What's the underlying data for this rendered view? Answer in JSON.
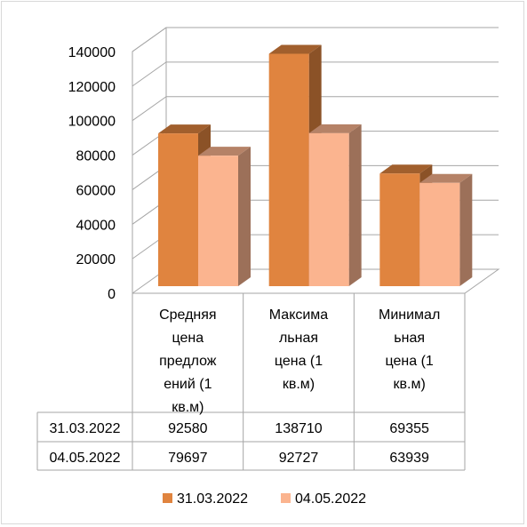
{
  "chart_data": {
    "type": "bar",
    "categories": [
      "Средняя цена предложений (1 кв.м)",
      "Максимальная цена (1 кв.м)",
      "Минимальная цена (1 кв.м)"
    ],
    "category_lines": [
      [
        "Средняя",
        "цена",
        "предлож",
        "ений (1",
        "кв.м)"
      ],
      [
        "Максима",
        "льная",
        "цена (1",
        "кв.м)"
      ],
      [
        "Минимал",
        "ьная",
        "цена (1",
        "кв.м)"
      ]
    ],
    "series": [
      {
        "name": "31.03.2022",
        "values": [
          92580,
          138710,
          69355
        ],
        "color": "#e0843f"
      },
      {
        "name": "04.05.2022",
        "values": [
          79697,
          92727,
          63939
        ],
        "color": "#fbb48f"
      }
    ],
    "value_labels": [
      [
        "92580",
        "138710",
        "69355"
      ],
      [
        "79697",
        "92727",
        "63939"
      ]
    ],
    "ylim": [
      0,
      140000
    ],
    "yticks": [
      "0",
      "20000",
      "40000",
      "60000",
      "80000",
      "100000",
      "120000",
      "140000"
    ],
    "grid": true,
    "style": "3d-clustered-column",
    "data_table": true,
    "legend": "bottom",
    "title": "",
    "xlabel": "",
    "ylabel": ""
  }
}
